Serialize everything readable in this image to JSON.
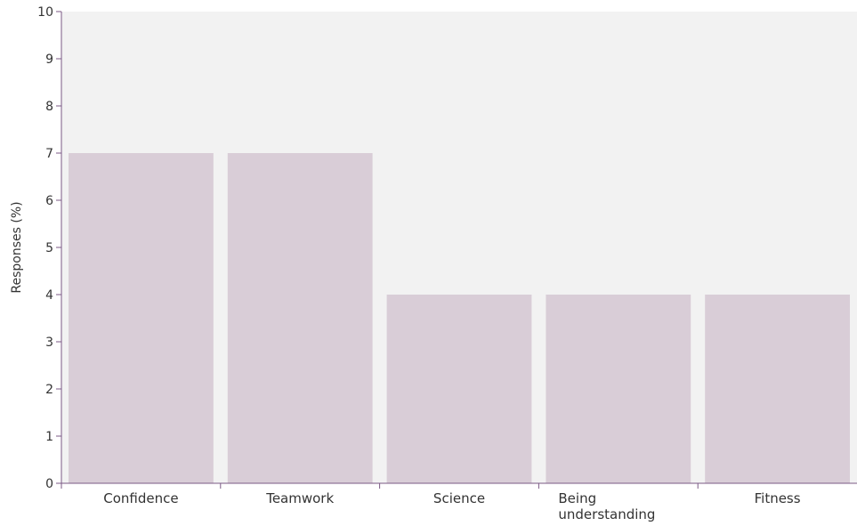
{
  "chart_data": {
    "type": "bar",
    "categories": [
      "Confidence",
      "Teamwork",
      "Science",
      "Being understanding",
      "Fitness"
    ],
    "category_lines": [
      [
        "Confidence"
      ],
      [
        "Teamwork"
      ],
      [
        "Science"
      ],
      [
        "Being",
        "understanding"
      ],
      [
        "Fitness"
      ]
    ],
    "values": [
      7,
      7,
      4,
      4,
      4
    ],
    "title": "",
    "xlabel": "",
    "ylabel": "Responses (%)",
    "ylim": [
      0,
      10
    ],
    "yticks": [
      "0",
      "1",
      "2",
      "3",
      "4",
      "5",
      "6",
      "7",
      "8",
      "9",
      "10"
    ],
    "grid": false,
    "legend": "none"
  },
  "colors": {
    "plot_background": "#f2f2f2",
    "bar": "#d9cdd7",
    "axis": "#7b5a85",
    "text": "#333333"
  }
}
